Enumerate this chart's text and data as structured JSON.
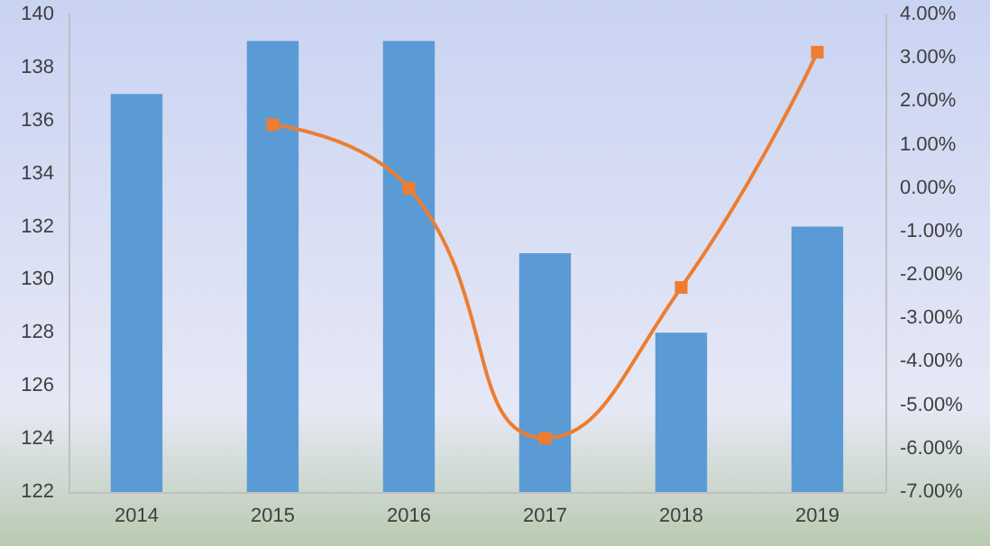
{
  "chart_data": {
    "type": "bar",
    "categories": [
      "2014",
      "2015",
      "2016",
      "2017",
      "2018",
      "2019"
    ],
    "series": [
      {
        "color": "#5b9bd5",
        "values": [
          137,
          139,
          139,
          131,
          128,
          132
        ]
      },
      {
        "type": "line",
        "axis": "y2",
        "color": "#ed7d31",
        "marker": "square",
        "values": [
          null,
          1.46,
          0,
          -5.76,
          -2.29,
          3.13
        ]
      }
    ],
    "ylim": [
      122,
      140
    ],
    "yticks": [
      122,
      124,
      126,
      128,
      130,
      132,
      134,
      136,
      138,
      140
    ],
    "y2lim": [
      -7,
      4
    ],
    "y2ticks": [
      {
        "value": 4,
        "label": "4.00%"
      },
      {
        "value": 3,
        "label": "3.00%"
      },
      {
        "value": 2,
        "label": "2.00%"
      },
      {
        "value": 1,
        "label": "1.00%"
      },
      {
        "value": 0,
        "label": "0.00%"
      },
      {
        "value": -1,
        "label": "-1.00%"
      },
      {
        "value": -2,
        "label": "-2.00%"
      },
      {
        "value": -3,
        "label": "-3.00%"
      },
      {
        "value": -4,
        "label": "-4.00%"
      },
      {
        "value": -5,
        "label": "-5.00%"
      },
      {
        "value": -6,
        "label": "-6.00%"
      },
      {
        "value": -7,
        "label": "-7.00%"
      }
    ],
    "grid": false
  }
}
